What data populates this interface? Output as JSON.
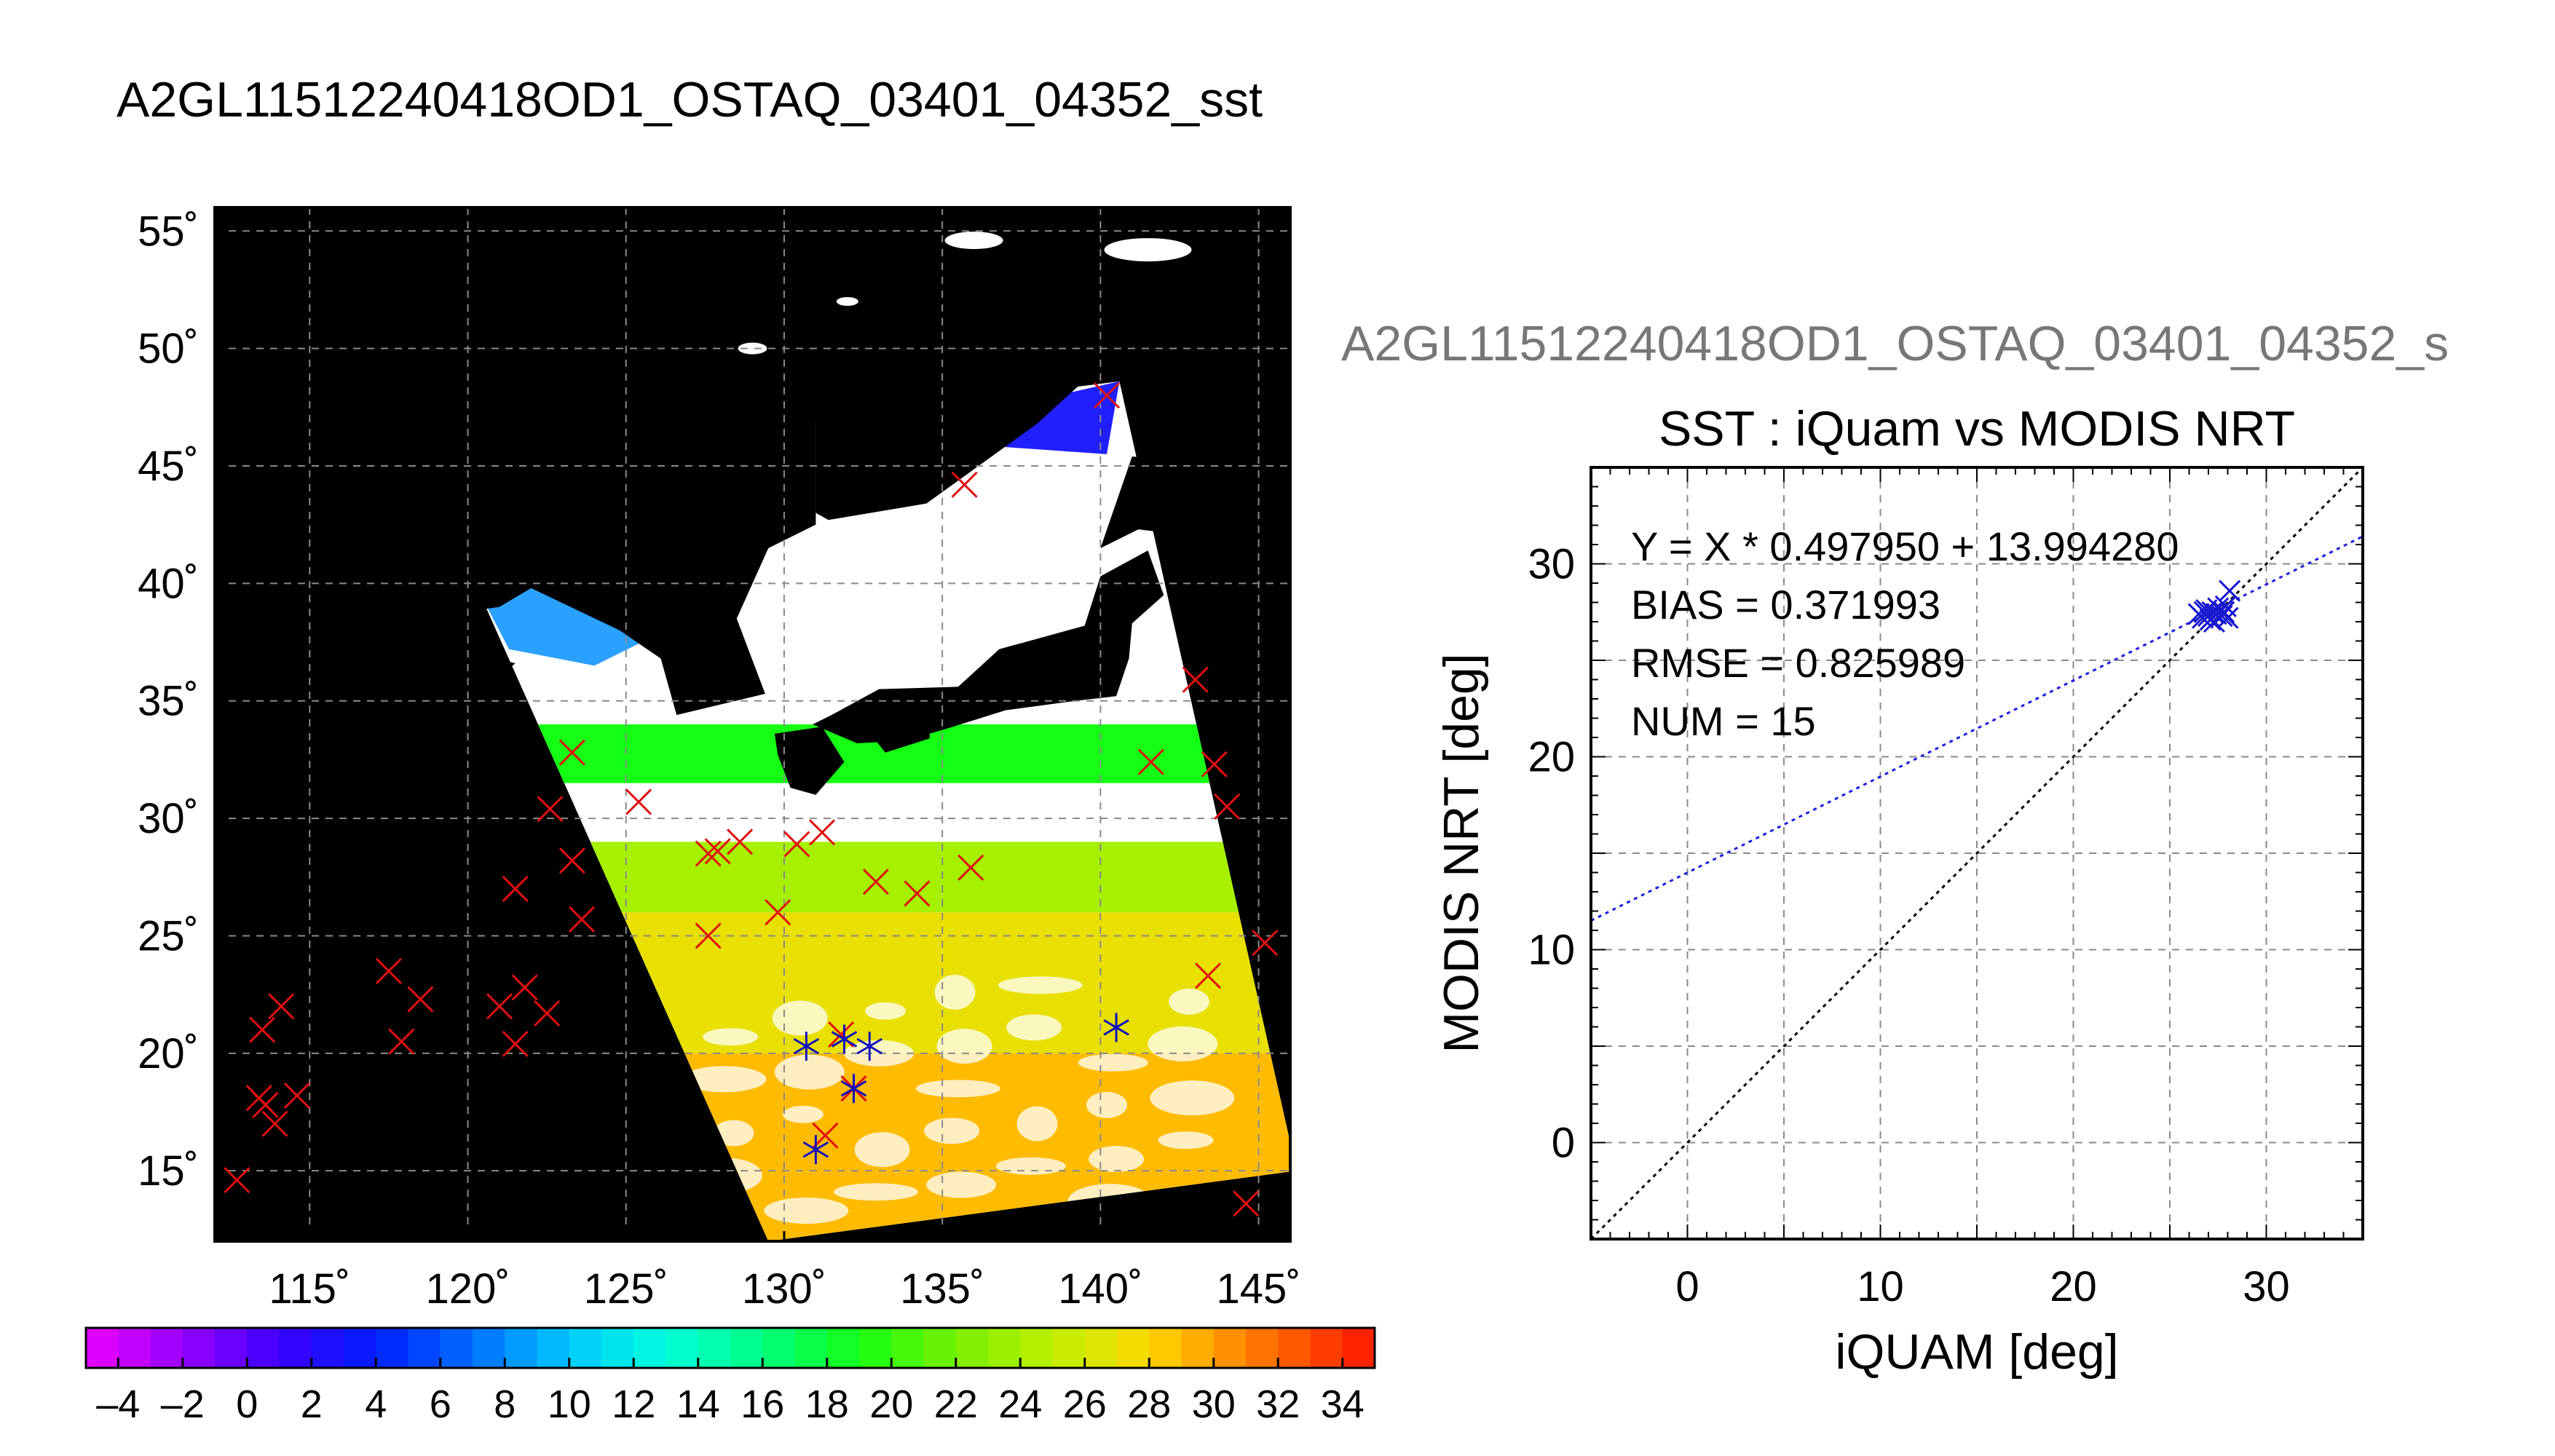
{
  "figure": {
    "title": "A2GL11512240418OD1_OSTAQ_03401_04352_sst",
    "right_title": "A2GL11512240418OD1_OSTAQ_03401_04352_s"
  },
  "chart_data": [
    {
      "type": "map",
      "title": "",
      "xlim": [
        112,
        146
      ],
      "ylim": [
        12,
        56
      ],
      "xticks": [
        115,
        120,
        125,
        130,
        135,
        140,
        145
      ],
      "yticks": [
        15,
        20,
        25,
        30,
        35,
        40,
        45,
        50,
        55
      ],
      "xtick_labels": [
        "115˚",
        "120˚",
        "125˚",
        "130˚",
        "135˚",
        "140˚",
        "145˚"
      ],
      "ytick_labels": [
        "15˚",
        "20˚",
        "25˚",
        "30˚",
        "35˚",
        "40˚",
        "45˚",
        "50˚",
        "55˚"
      ],
      "grid": true,
      "background_color": "#000000",
      "swath": {
        "corners_lonlat": [
          [
            120.3,
            39.8
          ],
          [
            131.2,
            47.0
          ],
          [
            140.6,
            48.6
          ],
          [
            146.2,
            15.0
          ],
          [
            129.5,
            12.0
          ]
        ],
        "bands": [
          {
            "lat_from": 12,
            "lat_to": 20,
            "sst": 29
          },
          {
            "lat_from": 20,
            "lat_to": 26,
            "sst": 27
          },
          {
            "lat_from": 26,
            "lat_to": 29,
            "sst": 24
          },
          {
            "lat_from": 31.5,
            "lat_to": 34,
            "sst": 19
          }
        ]
      },
      "iquam_matchups": [
        [
          112.7,
          14.6
        ],
        [
          113.4,
          18.1
        ],
        [
          113.6,
          17.8
        ],
        [
          113.9,
          17.0
        ],
        [
          114.6,
          18.2
        ],
        [
          113.5,
          21.0
        ],
        [
          114.1,
          22.0
        ],
        [
          117.5,
          23.5
        ],
        [
          117.9,
          20.5
        ],
        [
          118.5,
          22.3
        ],
        [
          121.0,
          22.0
        ],
        [
          121.5,
          20.4
        ],
        [
          121.5,
          27.0
        ],
        [
          121.8,
          22.8
        ],
        [
          122.5,
          21.7
        ],
        [
          122.6,
          30.4
        ],
        [
          123.3,
          28.2
        ],
        [
          123.6,
          25.7
        ],
        [
          123.3,
          32.8
        ],
        [
          125.4,
          30.7
        ],
        [
          127.6,
          28.5
        ],
        [
          127.6,
          25.0
        ],
        [
          127.9,
          28.6
        ],
        [
          128.6,
          29.0
        ],
        [
          129.8,
          26.0
        ],
        [
          130.4,
          28.9
        ],
        [
          131.2,
          29.4
        ],
        [
          131.3,
          16.5
        ],
        [
          131.8,
          20.8
        ],
        [
          132.2,
          18.5
        ],
        [
          132.9,
          27.3
        ],
        [
          134.2,
          26.8
        ],
        [
          135.9,
          27.9
        ],
        [
          135.7,
          44.2
        ],
        [
          140.2,
          48.0
        ],
        [
          141.6,
          32.4
        ],
        [
          143.0,
          35.9
        ],
        [
          143.6,
          32.3
        ],
        [
          144.0,
          30.5
        ],
        [
          143.4,
          23.3
        ],
        [
          145.2,
          24.7
        ],
        [
          144.6,
          13.6
        ]
      ],
      "modis_matchups": [
        [
          130.7,
          20.3
        ],
        [
          131.0,
          15.9
        ],
        [
          131.9,
          20.6
        ],
        [
          132.2,
          18.5
        ],
        [
          132.7,
          20.3
        ],
        [
          140.5,
          21.1
        ]
      ],
      "colorbar": {
        "min": -5,
        "max": 35,
        "tick_values": [
          -4,
          -2,
          0,
          2,
          4,
          6,
          8,
          10,
          12,
          14,
          16,
          18,
          20,
          22,
          24,
          26,
          28,
          30,
          32,
          34
        ],
        "tick_labels": [
          "–4",
          "–2",
          "0",
          "2",
          "4",
          "6",
          "8",
          "10",
          "12",
          "14",
          "16",
          "18",
          "20",
          "22",
          "24",
          "26",
          "28",
          "30",
          "32",
          "34"
        ]
      }
    },
    {
      "type": "scatter",
      "title": "SST : iQuam vs MODIS NRT",
      "xlabel": "iQUAM [deg]",
      "ylabel": "MODIS NRT [deg]",
      "xlim": [
        -5,
        35
      ],
      "ylim": [
        -5,
        35
      ],
      "xticks": [
        0,
        10,
        20,
        30
      ],
      "yticks": [
        0,
        10,
        20,
        30
      ],
      "grid": true,
      "annotations": [
        "Y = X * 0.497950 + 13.994280",
        "BIAS = 0.371993",
        "RMSE = 0.825989",
        "NUM = 15"
      ],
      "fit_line": {
        "slope": 0.49795,
        "intercept": 13.99428
      },
      "identity_line": true,
      "points": [
        [
          26.5,
          27.4
        ],
        [
          26.7,
          27.2
        ],
        [
          26.9,
          27.6
        ],
        [
          27.0,
          27.3
        ],
        [
          27.2,
          27.5
        ],
        [
          27.3,
          27.0
        ],
        [
          27.5,
          27.7
        ],
        [
          27.7,
          27.3
        ],
        [
          27.8,
          27.5
        ],
        [
          28.0,
          27.2
        ],
        [
          27.1,
          27.1
        ],
        [
          26.8,
          27.5
        ],
        [
          27.4,
          27.4
        ],
        [
          27.9,
          27.8
        ],
        [
          28.1,
          28.6
        ]
      ]
    }
  ]
}
